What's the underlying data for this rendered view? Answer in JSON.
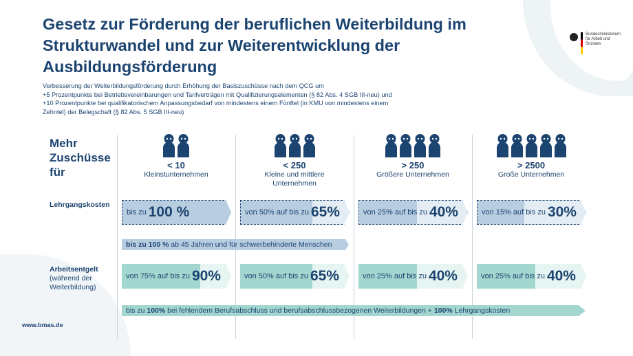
{
  "title": "Gesetz zur Förderung der beruflichen Weiterbildung im Strukturwandel und zur Weiterentwicklung der Ausbildungsförderung",
  "subtitle": [
    "Verbesserung der Weiterbildungsförderung durch Erhöhung der Basiszuschüsse nach dem QCG um",
    "+5 Prozentpunkte bei Betriebsvereinbarungen und Tarifverträgen mit Qualifizierungselementen (§ 82 Abs. 4 SGB III-neu) und",
    "+10 Prozentpunkte bei qualifikatorischem Anpassungsbedarf von mindestens einem Fünftel (in KMU von mindestens einem",
    "Zehntel) der Belegschaft (§ 82 Abs. 5 SGB III-neu)"
  ],
  "logo": "Bundesministerium für Arbeit und Soziales",
  "heading": "Mehr Zuschüsse für",
  "colors": {
    "navy": "#1c4470",
    "blue_fill": "#b8cde0",
    "blue_light": "#e4edf4",
    "teal_fill": "#a2d6cf",
    "teal_light": "#e6f4f2"
  },
  "columns": [
    {
      "size": "< 10",
      "label": "Kleinstunternehmen",
      "people": 2
    },
    {
      "size": "< 250",
      "label": "Kleine und mittlere Unternehmen",
      "people": 3
    },
    {
      "size": "> 250",
      "label": "Größere Unternehmen",
      "people": 4
    },
    {
      "size": "> 2500",
      "label": "Große Unternehmen",
      "people": 5
    }
  ],
  "rows": {
    "lehrgang": {
      "label": "Lehrgangskosten",
      "cells": [
        {
          "prefix": "bis zu",
          "from": 100,
          "value": "100 %"
        },
        {
          "prefix": "von 50% auf bis zu",
          "from": 50,
          "value": "65%"
        },
        {
          "prefix": "von 25% auf bis zu",
          "from": 25,
          "value": "40%"
        },
        {
          "prefix": "von 15% auf bis zu",
          "from": 15,
          "value": "30%"
        }
      ],
      "note_bold": "bis zu 100 %",
      "note": "ab 45 Jahren und für schwerbehinderte Menschen"
    },
    "entgelt": {
      "label": "Arbeitsentgelt",
      "label2": "(während der Weiterbildung)",
      "cells": [
        {
          "prefix": "von 75% auf bis zu",
          "from": 75,
          "value": "90%"
        },
        {
          "prefix": "von 50% auf bis zu",
          "from": 50,
          "value": "65%"
        },
        {
          "prefix": "von 25% auf bis zu",
          "from": 25,
          "value": "40%"
        },
        {
          "prefix": "von 25% auf bis zu",
          "from": 25,
          "value": "40%"
        }
      ],
      "note_a": "bis zu",
      "note_b": "100%",
      "note_c": "bei fehlendem Berufsabschluss und berufsabschlussbezogenen Weiterbildungen +",
      "note_d": "100%",
      "note_e": "Lehrgangskosten"
    }
  },
  "footer": "www.bmas.de"
}
